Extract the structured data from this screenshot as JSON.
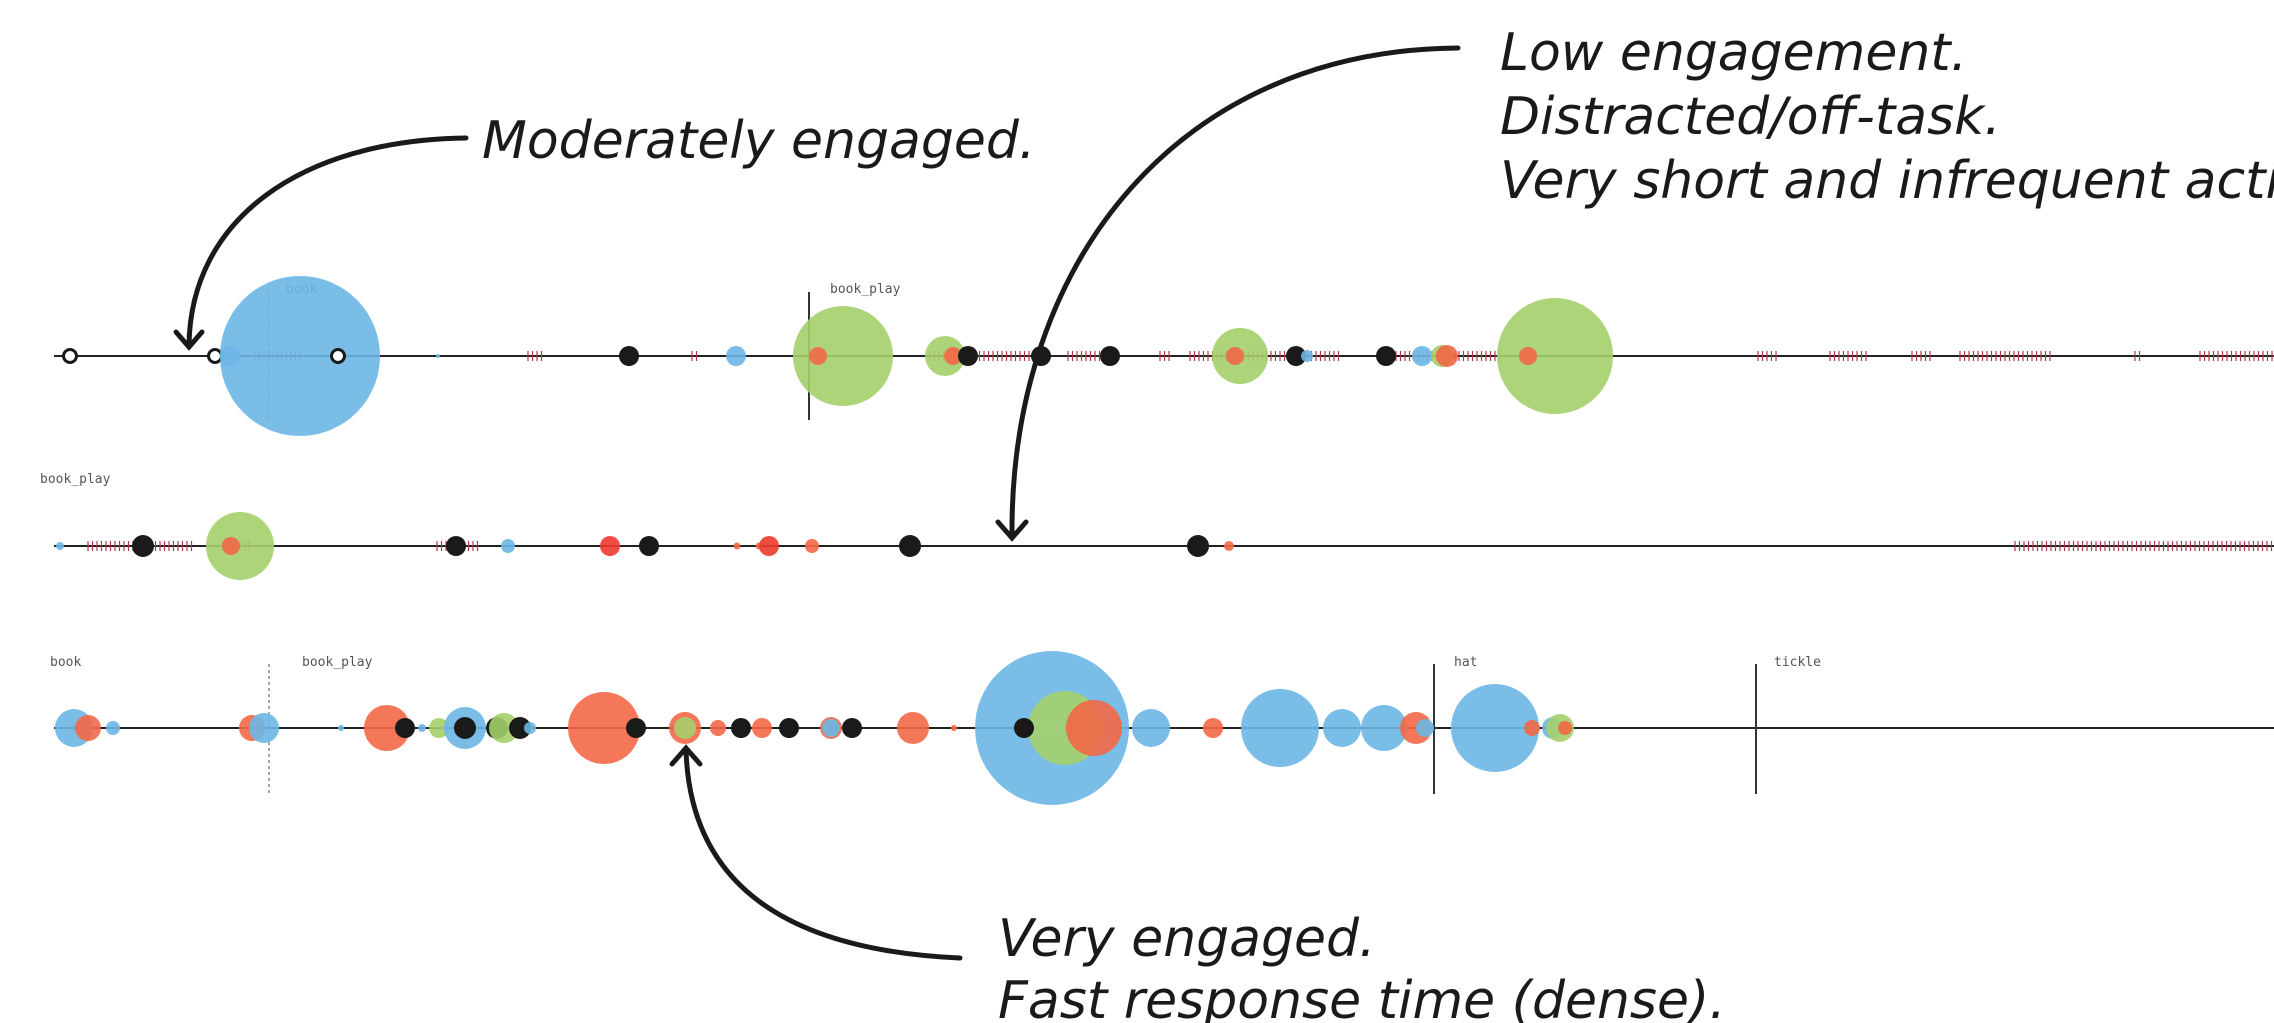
{
  "annotations": {
    "moderate": {
      "text": "Moderately engaged."
    },
    "low": {
      "lines": [
        "Low engagement.",
        "Distracted/off-task.",
        "Very short and infrequent actions."
      ]
    },
    "very": {
      "lines": [
        "Very engaged.",
        "Fast response time (dense)."
      ]
    }
  },
  "colors": {
    "blue": "#6cb7e6",
    "green": "#a5cf6b",
    "orange": "#f26846",
    "red": "#ee3a2e",
    "black": "#1a1a1a",
    "tick": "#b0384a",
    "line": "#222222"
  },
  "rows": [
    {
      "segment_labels": [
        "book",
        "book_play"
      ],
      "events": [
        {
          "t": 70,
          "type": "hollow",
          "size": 13
        },
        {
          "t": 215,
          "type": "hollow",
          "size": 13
        },
        {
          "t": 230,
          "type": "blue",
          "size": 20
        },
        {
          "t": 300,
          "type": "blue",
          "size": 160
        },
        {
          "t": 338,
          "type": "hollow",
          "size": 13
        },
        {
          "t": 438,
          "type": "blue",
          "size": 4
        },
        {
          "t": 629,
          "type": "black",
          "size": 20
        },
        {
          "t": 736,
          "type": "blue",
          "size": 20
        },
        {
          "t": 843,
          "type": "green",
          "size": 100
        },
        {
          "t": 818,
          "type": "orange",
          "size": 18
        },
        {
          "t": 945,
          "type": "green",
          "size": 40
        },
        {
          "t": 953,
          "type": "orange",
          "size": 18
        },
        {
          "t": 968,
          "type": "black",
          "size": 20
        },
        {
          "t": 1041,
          "type": "black",
          "size": 20
        },
        {
          "t": 1110,
          "type": "black",
          "size": 20
        },
        {
          "t": 1240,
          "type": "green",
          "size": 56
        },
        {
          "t": 1235,
          "type": "orange",
          "size": 18
        },
        {
          "t": 1296,
          "type": "black",
          "size": 20
        },
        {
          "t": 1307,
          "type": "blue",
          "size": 12
        },
        {
          "t": 1386,
          "type": "black",
          "size": 20
        },
        {
          "t": 1422,
          "type": "blue",
          "size": 20
        },
        {
          "t": 1442,
          "type": "green",
          "size": 22
        },
        {
          "t": 1447,
          "type": "orange",
          "size": 22
        },
        {
          "t": 1555,
          "type": "green",
          "size": 116
        },
        {
          "t": 1528,
          "type": "orange",
          "size": 18
        }
      ]
    },
    {
      "segment_labels": [
        "book_play"
      ],
      "events": [
        {
          "t": 60,
          "type": "blue",
          "size": 8
        },
        {
          "t": 143,
          "type": "black",
          "size": 22
        },
        {
          "t": 240,
          "type": "green",
          "size": 68
        },
        {
          "t": 231,
          "type": "orange",
          "size": 18
        },
        {
          "t": 456,
          "type": "black",
          "size": 20
        },
        {
          "t": 508,
          "type": "blue",
          "size": 14
        },
        {
          "t": 610,
          "type": "red",
          "size": 20
        },
        {
          "t": 649,
          "type": "black",
          "size": 20
        },
        {
          "t": 737,
          "type": "orange",
          "size": 7
        },
        {
          "t": 759,
          "type": "orange",
          "size": 7
        },
        {
          "t": 769,
          "type": "red",
          "size": 20
        },
        {
          "t": 812,
          "type": "orange",
          "size": 14
        },
        {
          "t": 910,
          "type": "black",
          "size": 22
        },
        {
          "t": 1198,
          "type": "black",
          "size": 22
        },
        {
          "t": 1229,
          "type": "orange",
          "size": 10
        }
      ]
    },
    {
      "segment_labels": [
        "book",
        "book_play",
        "hat",
        "tickle"
      ],
      "events": [
        {
          "t": 74,
          "type": "blue",
          "size": 38
        },
        {
          "t": 88,
          "type": "orange",
          "size": 26
        },
        {
          "t": 113,
          "type": "blue",
          "size": 14
        },
        {
          "t": 252,
          "type": "orange",
          "size": 26
        },
        {
          "t": 264,
          "type": "blue",
          "size": 30
        },
        {
          "t": 341,
          "type": "blue",
          "size": 6
        },
        {
          "t": 387,
          "type": "orange",
          "size": 46
        },
        {
          "t": 405,
          "type": "black",
          "size": 20
        },
        {
          "t": 422,
          "type": "blue",
          "size": 8
        },
        {
          "t": 439,
          "type": "green",
          "size": 20
        },
        {
          "t": 465,
          "type": "blue",
          "size": 42
        },
        {
          "t": 465,
          "type": "black",
          "size": 22
        },
        {
          "t": 497,
          "type": "black",
          "size": 22
        },
        {
          "t": 504,
          "type": "green",
          "size": 30
        },
        {
          "t": 520,
          "type": "black",
          "size": 22
        },
        {
          "t": 530,
          "type": "blue",
          "size": 12
        },
        {
          "t": 604,
          "type": "orange",
          "size": 72
        },
        {
          "t": 636,
          "type": "black",
          "size": 20
        },
        {
          "t": 685,
          "type": "orange",
          "size": 32
        },
        {
          "t": 685,
          "type": "green",
          "size": 22
        },
        {
          "t": 718,
          "type": "orange",
          "size": 16
        },
        {
          "t": 741,
          "type": "black",
          "size": 20
        },
        {
          "t": 762,
          "type": "orange",
          "size": 20
        },
        {
          "t": 789,
          "type": "black",
          "size": 20
        },
        {
          "t": 831,
          "type": "orange",
          "size": 22
        },
        {
          "t": 831,
          "type": "blue",
          "size": 18
        },
        {
          "t": 852,
          "type": "black",
          "size": 20
        },
        {
          "t": 913,
          "type": "orange",
          "size": 32
        },
        {
          "t": 954,
          "type": "orange",
          "size": 6
        },
        {
          "t": 1052,
          "type": "blue",
          "size": 154
        },
        {
          "t": 1065,
          "type": "green",
          "size": 74
        },
        {
          "t": 1094,
          "type": "orange",
          "size": 56
        },
        {
          "t": 1024,
          "type": "black",
          "size": 20
        },
        {
          "t": 1151,
          "type": "blue",
          "size": 38
        },
        {
          "t": 1213,
          "type": "orange",
          "size": 20
        },
        {
          "t": 1280,
          "type": "blue",
          "size": 78
        },
        {
          "t": 1342,
          "type": "blue",
          "size": 38
        },
        {
          "t": 1384,
          "type": "blue",
          "size": 46
        },
        {
          "t": 1416,
          "type": "orange",
          "size": 32
        },
        {
          "t": 1425,
          "type": "blue",
          "size": 18
        },
        {
          "t": 1495,
          "type": "blue",
          "size": 88
        },
        {
          "t": 1532,
          "type": "orange",
          "size": 16
        },
        {
          "t": 1553,
          "type": "blue",
          "size": 22
        },
        {
          "t": 1560,
          "type": "green",
          "size": 28
        },
        {
          "t": 1565,
          "type": "orange",
          "size": 14
        }
      ]
    }
  ]
}
